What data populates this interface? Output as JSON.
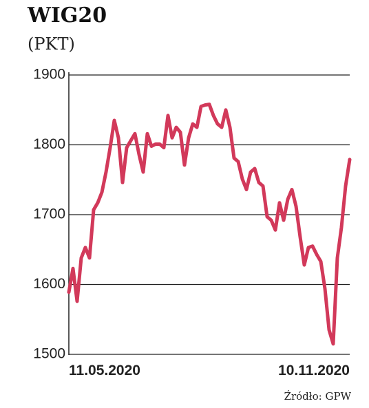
{
  "chart_data": {
    "type": "line",
    "title": "WIG20",
    "subtitle": "(PKT)",
    "source": "Źródło: GPW",
    "categories": [
      "11.05.2020",
      null,
      null,
      null,
      null,
      null,
      null,
      null,
      null,
      null,
      null,
      null,
      null,
      null,
      null,
      null,
      null,
      null,
      null,
      null,
      null,
      null,
      null,
      null,
      null,
      null,
      null,
      null,
      null,
      null,
      null,
      null,
      null,
      null,
      null,
      null,
      null,
      null,
      null,
      null,
      null,
      null,
      null,
      null,
      null,
      null,
      null,
      null,
      null,
      null,
      null,
      null,
      null,
      null,
      null,
      null,
      null,
      null,
      null,
      null,
      null,
      null,
      null,
      null,
      null,
      null,
      null,
      null,
      "10.11.2020"
    ],
    "values": [
      1589,
      1623,
      1576,
      1638,
      1653,
      1638,
      1707,
      1717,
      1732,
      1761,
      1796,
      1835,
      1810,
      1746,
      1796,
      1806,
      1816,
      1786,
      1761,
      1816,
      1798,
      1801,
      1801,
      1796,
      1842,
      1810,
      1825,
      1818,
      1771,
      1810,
      1830,
      1825,
      1855,
      1857,
      1858,
      1842,
      1830,
      1825,
      1850,
      1825,
      1781,
      1776,
      1751,
      1736,
      1761,
      1766,
      1746,
      1741,
      1697,
      1692,
      1678,
      1717,
      1692,
      1722,
      1736,
      1712,
      1668,
      1628,
      1653,
      1655,
      1643,
      1633,
      1594,
      1535,
      1515,
      1638,
      1682,
      1741,
      1779
    ],
    "color": "#d2395a",
    "ylim": [
      1500,
      1900
    ],
    "yticks": [
      1500,
      1600,
      1700,
      1800,
      1900
    ],
    "grid": true
  }
}
